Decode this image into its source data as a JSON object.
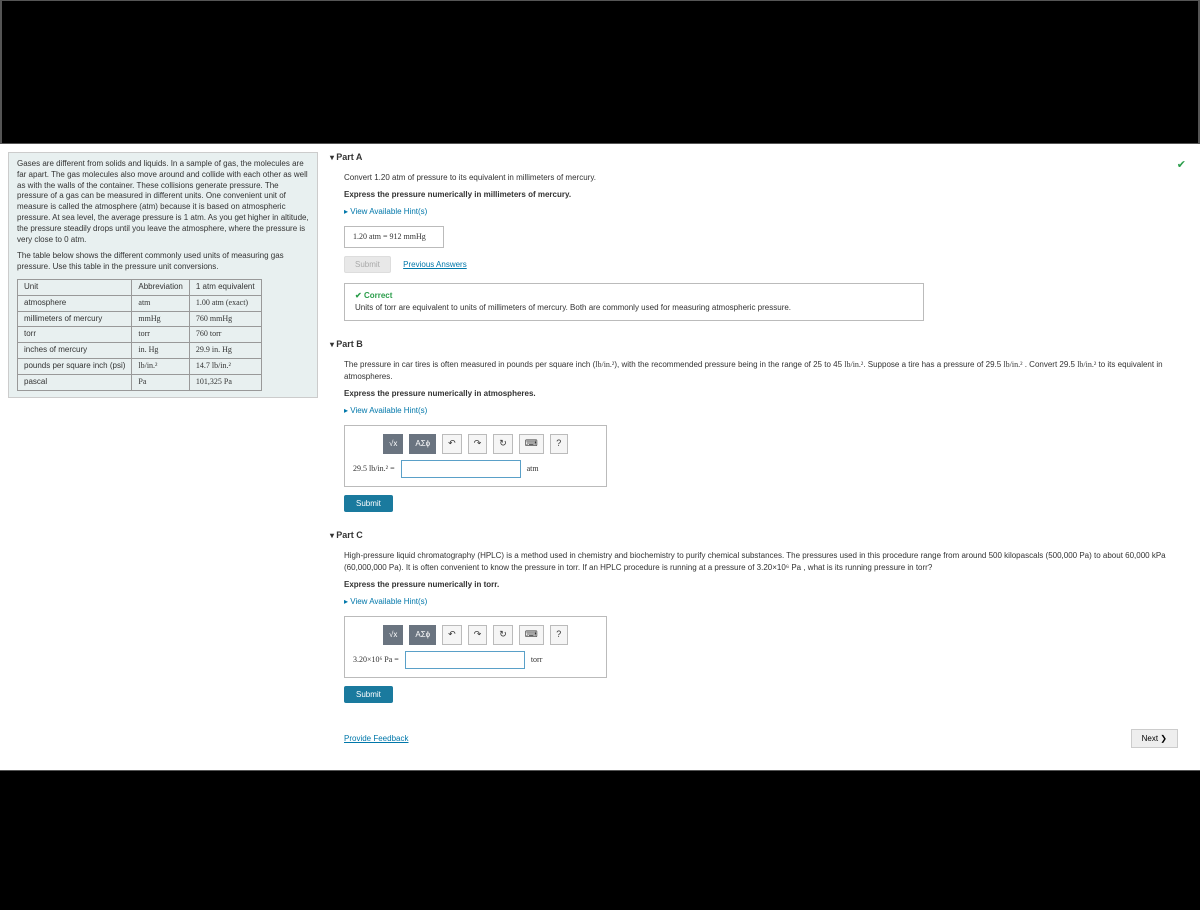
{
  "info": {
    "para1": "Gases are different from solids and liquids. In a sample of gas, the molecules are far apart. The gas molecules also move around and collide with each other as well as with the walls of the container. These collisions generate pressure. The pressure of a gas can be measured in different units. One convenient unit of measure is called the atmosphere (atm) because it is based on atmospheric pressure. At sea level, the average pressure is 1 atm. As you get higher in altitude, the pressure steadily drops until you leave the atmosphere, where the pressure is very close to 0 atm.",
    "para2": "The table below shows the different commonly used units of measuring gas pressure. Use this table in the pressure unit conversions.",
    "table": {
      "headers": [
        "Unit",
        "Abbreviation",
        "1 atm equivalent"
      ],
      "rows": [
        [
          "atmosphere",
          "atm",
          "1.00 atm (exact)"
        ],
        [
          "millimeters of mercury",
          "mmHg",
          "760 mmHg"
        ],
        [
          "torr",
          "torr",
          "760 torr"
        ],
        [
          "inches of mercury",
          "in. Hg",
          "29.9 in. Hg"
        ],
        [
          "pounds per square inch (psi)",
          "lb/in.²",
          "14.7 lb/in.²"
        ],
        [
          "pascal",
          "Pa",
          "101,325 Pa"
        ]
      ]
    }
  },
  "partA": {
    "title": "Part A",
    "prompt": "Convert 1.20 atm of pressure to its equivalent in millimeters of mercury.",
    "express": "Express the pressure numerically in millimeters of mercury.",
    "hints": "View Available Hint(s)",
    "answer": "1.20 atm =  912  mmHg",
    "submit": "Submit",
    "prev": "Previous Answers",
    "correct": "Correct",
    "correct_msg": "Units of torr are equivalent to units of millimeters of mercury. Both are commonly used for measuring atmospheric pressure."
  },
  "partB": {
    "title": "Part B",
    "prompt_pre": "The pressure in car tires is often measured in pounds per square inch (",
    "prompt_unit1": "lb/in.²",
    "prompt_mid1": "), with the recommended pressure being in the range of 25 to 45 ",
    "prompt_mid2": ". Suppose a tire has a pressure of 29.5 ",
    "prompt_mid3": " . Convert 29.5 ",
    "prompt_end": " to its equivalent in atmospheres.",
    "express": "Express the pressure numerically in atmospheres.",
    "hints": "View Available Hint(s)",
    "input_label": "29.5 lb/in.² =",
    "unit": "atm",
    "submit": "Submit"
  },
  "partC": {
    "title": "Part C",
    "prompt": "High-pressure liquid chromatography (HPLC) is a method used in chemistry and biochemistry to purify chemical substances. The pressures used in this procedure range from around 500 kilopascals (500,000 Pa) to about 60,000 kPa (60,000,000 Pa). It is often convenient to know the pressure in torr. If an HPLC procedure is running at a pressure of 3.20×10⁶ Pa , what is its running pressure in torr?",
    "express": "Express the pressure numerically in torr.",
    "hints": "View Available Hint(s)",
    "input_label": "3.20×10⁶ Pa =",
    "unit": "torr",
    "submit": "Submit"
  },
  "footer": {
    "feedback": "Provide Feedback",
    "next": "Next ❯"
  },
  "toolbar": {
    "templates": "√x",
    "greek": "ΑΣϕ",
    "undo": "↶",
    "redo": "↷",
    "reset": "↻",
    "keyboard": "⌨",
    "help": "?"
  }
}
